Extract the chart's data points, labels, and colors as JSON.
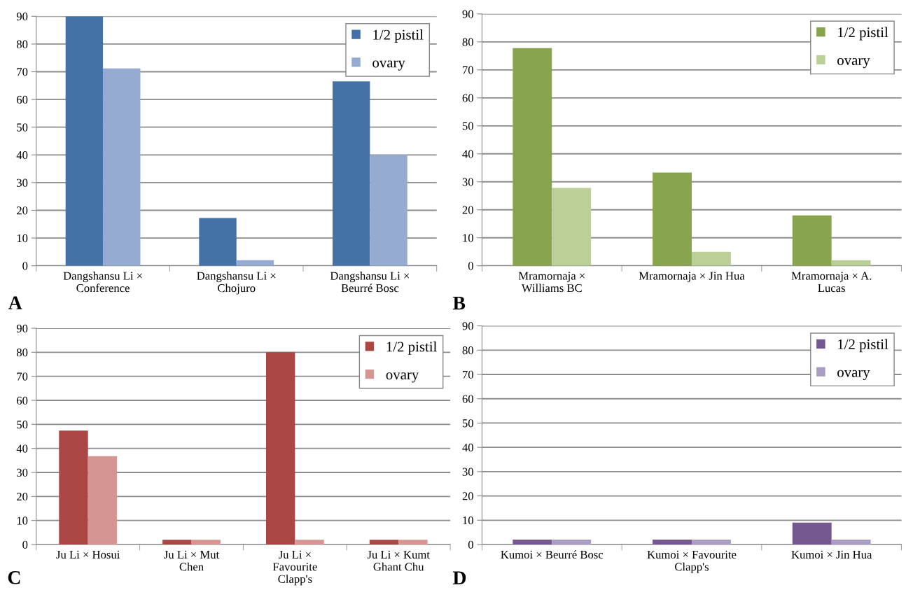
{
  "chart_data": [
    {
      "type": "bar",
      "categories": [
        "Dangshansu Li ×\nConference",
        "Dangshansu Li ×\nChojuro",
        "Dangshansu Li ×\nBeurré Bosc"
      ],
      "series": [
        {
          "name": "1/2 pistil",
          "color": "#4472a8",
          "values": [
            90,
            17.2,
            66.5
          ]
        },
        {
          "name": "ovary",
          "color": "#95abd2",
          "values": [
            71.2,
            2,
            40
          ]
        }
      ],
      "ylim": [
        0,
        90
      ],
      "yticks": [
        0,
        10,
        20,
        30,
        40,
        50,
        60,
        70,
        80,
        90
      ],
      "grid": "y",
      "legend": "top right",
      "annotations": [
        "A"
      ]
    },
    {
      "type": "bar",
      "categories": [
        "Mramornaja ×\nWilliams BC",
        "Mramornaja × Jin Hua",
        "Mramornaja × A.\nLucas"
      ],
      "series": [
        {
          "name": "1/2 pistil",
          "color": "#88a44c",
          "values": [
            77.8,
            33.3,
            18
          ]
        },
        {
          "name": "ovary",
          "color": "#bad096",
          "values": [
            27.8,
            5,
            2
          ]
        }
      ],
      "ylim": [
        0,
        90
      ],
      "yticks": [
        0,
        10,
        20,
        30,
        40,
        50,
        60,
        70,
        80,
        90
      ],
      "grid": "y",
      "legend": "top right",
      "annotations": [
        "B"
      ]
    },
    {
      "type": "bar",
      "categories": [
        "Ju Li × Hosui",
        "Ju Li × Mut\nChen",
        "Ju Li ×\nFavourite\nClapp's",
        "Ju Li × Kumt\nGhant Chu"
      ],
      "series": [
        {
          "name": "1/2 pistil",
          "color": "#aa4644",
          "values": [
            47.4,
            2,
            80,
            2
          ]
        },
        {
          "name": "ovary",
          "color": "#d59593",
          "values": [
            36.8,
            2,
            2,
            2
          ]
        }
      ],
      "ylim": [
        0,
        90
      ],
      "yticks": [
        0,
        10,
        20,
        30,
        40,
        50,
        60,
        70,
        80,
        90
      ],
      "grid": "y",
      "legend": "top right",
      "annotations": [
        "C"
      ]
    },
    {
      "type": "bar",
      "categories": [
        "Kumoi × Beurré Bosc",
        "Kumoi × Favourite\nClapp's",
        "Kumoi × Jin Hua"
      ],
      "series": [
        {
          "name": "1/2 pistil",
          "color": "#74588f",
          "values": [
            2,
            2,
            9
          ]
        },
        {
          "name": "ovary",
          "color": "#a99cc5",
          "values": [
            2,
            2,
            2
          ]
        }
      ],
      "ylim": [
        0,
        90
      ],
      "yticks": [
        0,
        10,
        20,
        30,
        40,
        50,
        60,
        70,
        80,
        90
      ],
      "grid": "y",
      "legend": "top right",
      "annotations": [
        "D"
      ]
    }
  ]
}
